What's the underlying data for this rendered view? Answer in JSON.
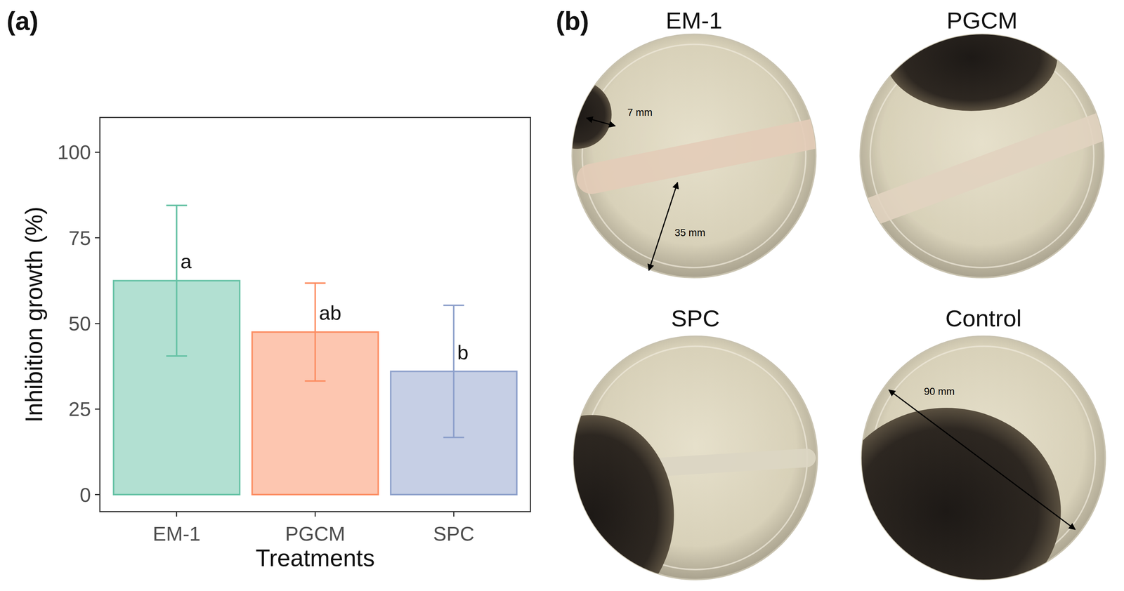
{
  "chart_data": {
    "type": "bar",
    "panel_label": "(a)",
    "x_label": "Treatments",
    "y_label": "Inhibition growth (%)",
    "categories": [
      "EM-1",
      "PGCM",
      "SPC"
    ],
    "values": [
      62.5,
      47.5,
      36
    ],
    "error": [
      22,
      14.3,
      19.3
    ],
    "group_letters": [
      "a",
      "ab",
      "b"
    ],
    "colors": [
      "#66c2a5",
      "#fc8d62",
      "#8da0cb"
    ],
    "ylim": [
      -4.8,
      110
    ],
    "yticks": [
      0,
      25,
      50,
      75,
      100
    ],
    "grid": false
  },
  "photo_panel": {
    "panel_label": "(b)",
    "plates": [
      {
        "title": "EM-1",
        "measurements": [
          "7 mm",
          "35 mm"
        ]
      },
      {
        "title": "PGCM",
        "measurements": []
      },
      {
        "title": "SPC",
        "measurements": []
      },
      {
        "title": "Control",
        "measurements": [
          "90 mm"
        ]
      }
    ]
  }
}
